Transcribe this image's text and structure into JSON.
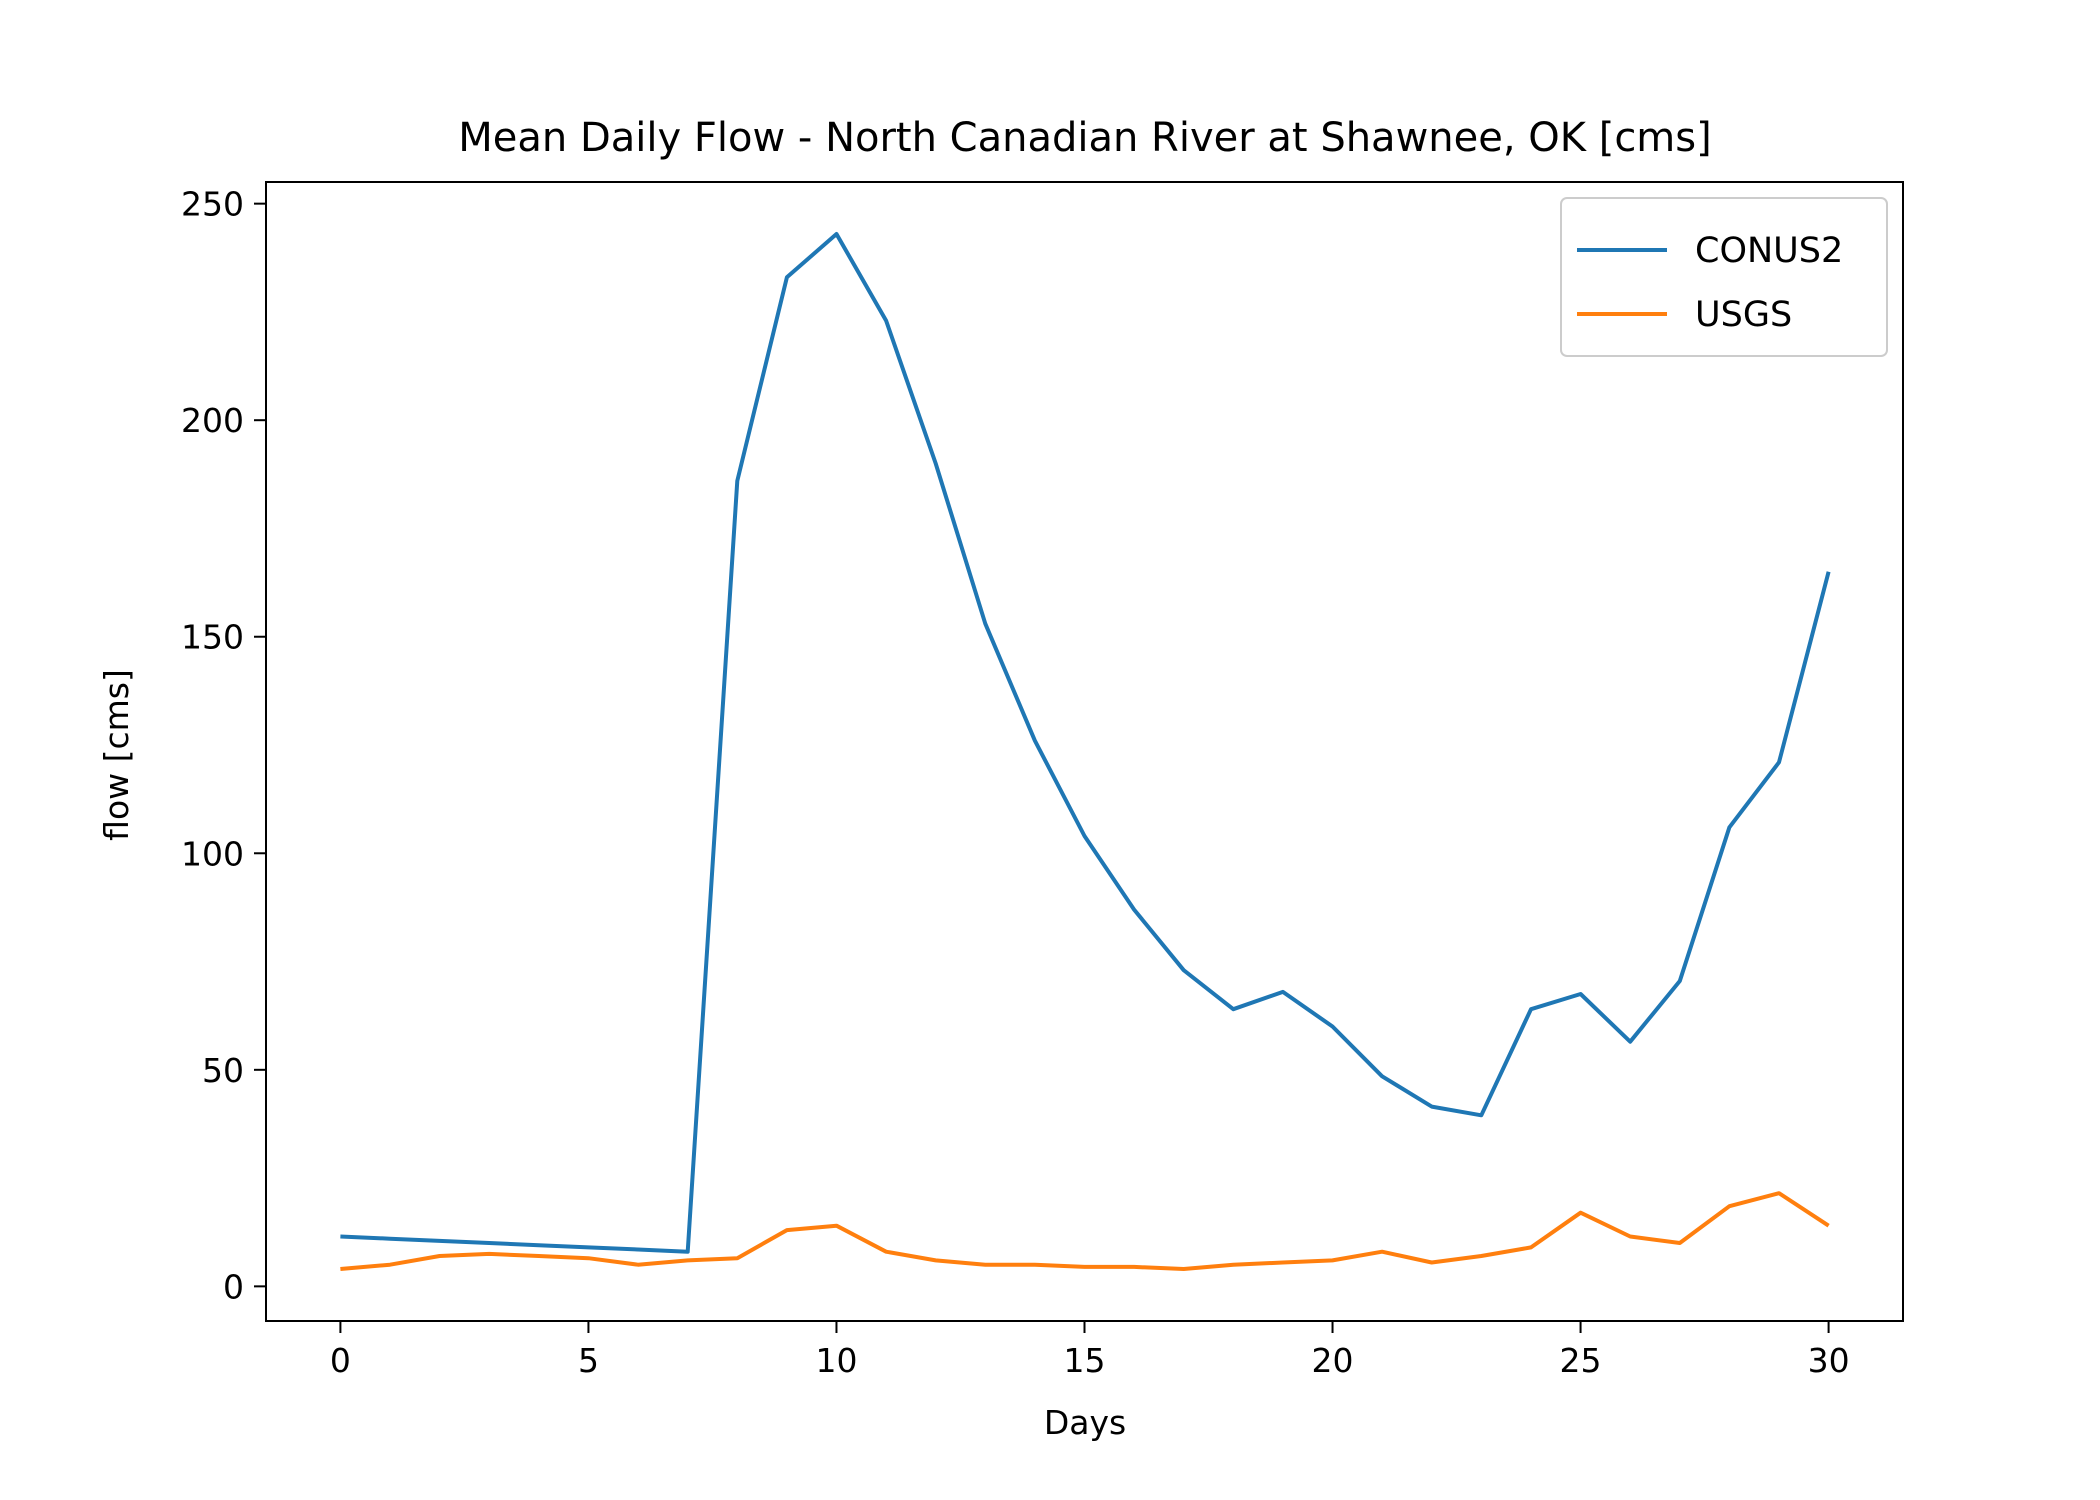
{
  "chart_data": {
    "type": "line",
    "title": "Mean Daily Flow - North Canadian River at Shawnee, OK [cms]",
    "xlabel": "Days",
    "ylabel": "flow [cms]",
    "xlim": [
      -1.5,
      31.5
    ],
    "ylim": [
      -8,
      255
    ],
    "xticks": [
      0,
      5,
      10,
      15,
      20,
      25,
      30
    ],
    "yticks": [
      0,
      50,
      100,
      150,
      200,
      250
    ],
    "grid": false,
    "legend_position": "top-right",
    "x": [
      0,
      1,
      2,
      3,
      4,
      5,
      6,
      7,
      8,
      9,
      10,
      11,
      12,
      13,
      14,
      15,
      16,
      17,
      18,
      19,
      20,
      21,
      22,
      23,
      24,
      25,
      26,
      27,
      28,
      29,
      30
    ],
    "series": [
      {
        "name": "CONUS2",
        "color": "#1f77b4",
        "values": [
          11.5,
          11,
          10.5,
          10,
          9.5,
          9,
          8.5,
          8,
          186,
          233,
          243,
          223,
          190,
          153,
          126,
          104,
          87,
          73,
          64,
          68,
          60,
          48.5,
          41.5,
          39.5,
          64,
          67.5,
          56.5,
          70.5,
          106,
          121,
          165
        ]
      },
      {
        "name": "USGS",
        "color": "#ff7f0e",
        "values": [
          4,
          5,
          7,
          7.5,
          7,
          6.5,
          5,
          6,
          6.5,
          13,
          14,
          8,
          6,
          5,
          5,
          4.5,
          4.5,
          4,
          5,
          5.5,
          6,
          8,
          5.5,
          7,
          9,
          17,
          11.5,
          10,
          18.5,
          21.5,
          14
        ]
      }
    ]
  }
}
